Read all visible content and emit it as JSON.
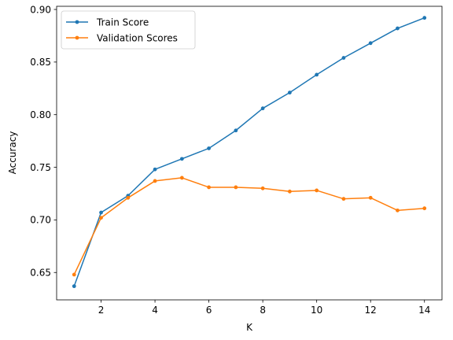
{
  "chart_data": {
    "type": "line",
    "xlabel": "K",
    "ylabel": "Accuracy",
    "xlim": [
      0.35,
      14.65
    ],
    "ylim": [
      0.624,
      0.903
    ],
    "x_ticks": [
      2,
      4,
      6,
      8,
      10,
      12,
      14
    ],
    "y_ticks": [
      0.65,
      0.7,
      0.75,
      0.8,
      0.85,
      0.9
    ],
    "x_tick_labels": [
      "2",
      "4",
      "6",
      "8",
      "10",
      "12",
      "14"
    ],
    "y_tick_labels": [
      "0.65",
      "0.70",
      "0.75",
      "0.80",
      "0.85",
      "0.90"
    ],
    "grid": false,
    "legend_position": "top-left",
    "x": [
      1,
      2,
      3,
      4,
      5,
      6,
      7,
      8,
      9,
      10,
      11,
      12,
      13,
      14
    ],
    "series": [
      {
        "name": "Train Score",
        "color": "#1f77b4",
        "values": [
          0.637,
          0.707,
          0.723,
          0.748,
          0.758,
          0.768,
          0.785,
          0.806,
          0.821,
          0.838,
          0.854,
          0.868,
          0.882,
          0.892
        ]
      },
      {
        "name": "Validation Scores",
        "color": "#ff7f0e",
        "values": [
          0.648,
          0.702,
          0.721,
          0.737,
          0.74,
          0.731,
          0.731,
          0.73,
          0.727,
          0.728,
          0.72,
          0.721,
          0.709,
          0.711
        ]
      }
    ]
  }
}
